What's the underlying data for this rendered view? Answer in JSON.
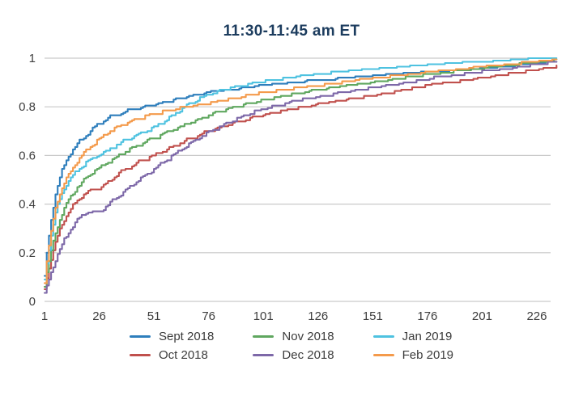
{
  "title": "11:30-11:45 am ET",
  "colors": {
    "title_text": "#1c3c5e",
    "axis_text": "#3d3d3d",
    "gridline": "#c9c9c9"
  },
  "chart_data": {
    "type": "line",
    "subtype": "empirical-cdf-staircase",
    "title": "11:30-11:45 am ET",
    "xlabel": "",
    "ylabel": "",
    "xlim": [
      1,
      237
    ],
    "ylim": [
      0,
      1
    ],
    "grid": "horizontal",
    "legend_position": "bottom",
    "x_ticks": [
      1,
      26,
      51,
      76,
      101,
      126,
      151,
      176,
      201,
      226
    ],
    "y_ticks": [
      0,
      0.2,
      0.4,
      0.6,
      0.8,
      1
    ],
    "y_tick_labels": [
      "0",
      "0.2",
      "0.4",
      "0.6",
      "0.8",
      "1"
    ],
    "series": [
      {
        "name": "Sept 2018",
        "color": "#2e7ebc",
        "points": [
          [
            1,
            0.1
          ],
          [
            2,
            0.2
          ],
          [
            3,
            0.29
          ],
          [
            4,
            0.36
          ],
          [
            5,
            0.42
          ],
          [
            6,
            0.46
          ],
          [
            8,
            0.52
          ],
          [
            10,
            0.565
          ],
          [
            12,
            0.6
          ],
          [
            15,
            0.64
          ],
          [
            18,
            0.665
          ],
          [
            20,
            0.685
          ],
          [
            25,
            0.725
          ],
          [
            29,
            0.75
          ],
          [
            35,
            0.77
          ],
          [
            40,
            0.783
          ],
          [
            48,
            0.8
          ],
          [
            56,
            0.818
          ],
          [
            65,
            0.838
          ],
          [
            75,
            0.857
          ],
          [
            85,
            0.868
          ],
          [
            100,
            0.885
          ],
          [
            115,
            0.897
          ],
          [
            130,
            0.908
          ],
          [
            145,
            0.92
          ],
          [
            160,
            0.93
          ],
          [
            178,
            0.941
          ],
          [
            195,
            0.952
          ],
          [
            210,
            0.962
          ],
          [
            225,
            0.975
          ],
          [
            235,
            0.985
          ]
        ]
      },
      {
        "name": "Oct 2018",
        "color": "#c0504d",
        "points": [
          [
            1,
            0.05
          ],
          [
            2,
            0.1
          ],
          [
            3,
            0.145
          ],
          [
            4,
            0.185
          ],
          [
            5,
            0.22
          ],
          [
            6,
            0.25
          ],
          [
            8,
            0.3
          ],
          [
            10,
            0.34
          ],
          [
            12,
            0.37
          ],
          [
            15,
            0.405
          ],
          [
            18,
            0.435
          ],
          [
            20,
            0.452
          ],
          [
            25,
            0.46
          ],
          [
            29,
            0.478
          ],
          [
            35,
            0.53
          ],
          [
            40,
            0.553
          ],
          [
            48,
            0.588
          ],
          [
            56,
            0.62
          ],
          [
            65,
            0.658
          ],
          [
            75,
            0.695
          ],
          [
            85,
            0.725
          ],
          [
            100,
            0.762
          ],
          [
            115,
            0.79
          ],
          [
            130,
            0.813
          ],
          [
            145,
            0.835
          ],
          [
            160,
            0.858
          ],
          [
            178,
            0.89
          ],
          [
            195,
            0.91
          ],
          [
            210,
            0.928
          ],
          [
            225,
            0.947
          ],
          [
            235,
            0.963
          ]
        ]
      },
      {
        "name": "Nov 2018",
        "color": "#5fa75f",
        "points": [
          [
            1,
            0.065
          ],
          [
            2,
            0.12
          ],
          [
            3,
            0.17
          ],
          [
            4,
            0.215
          ],
          [
            5,
            0.255
          ],
          [
            6,
            0.29
          ],
          [
            8,
            0.345
          ],
          [
            10,
            0.385
          ],
          [
            12,
            0.42
          ],
          [
            15,
            0.46
          ],
          [
            18,
            0.49
          ],
          [
            20,
            0.51
          ],
          [
            25,
            0.545
          ],
          [
            29,
            0.565
          ],
          [
            35,
            0.6
          ],
          [
            40,
            0.625
          ],
          [
            48,
            0.66
          ],
          [
            56,
            0.69
          ],
          [
            65,
            0.725
          ],
          [
            75,
            0.76
          ],
          [
            85,
            0.79
          ],
          [
            100,
            0.825
          ],
          [
            115,
            0.85
          ],
          [
            130,
            0.873
          ],
          [
            145,
            0.893
          ],
          [
            160,
            0.91
          ],
          [
            178,
            0.932
          ],
          [
            195,
            0.95
          ],
          [
            210,
            0.963
          ],
          [
            225,
            0.978
          ],
          [
            235,
            0.99
          ]
        ]
      },
      {
        "name": "Dec 2018",
        "color": "#7d68a8",
        "points": [
          [
            1,
            0.03
          ],
          [
            2,
            0.06
          ],
          [
            3,
            0.09
          ],
          [
            4,
            0.12
          ],
          [
            5,
            0.15
          ],
          [
            6,
            0.175
          ],
          [
            8,
            0.22
          ],
          [
            10,
            0.255
          ],
          [
            12,
            0.285
          ],
          [
            15,
            0.325
          ],
          [
            18,
            0.355
          ],
          [
            20,
            0.375
          ],
          [
            25,
            0.355
          ],
          [
            29,
            0.39
          ],
          [
            35,
            0.435
          ],
          [
            40,
            0.47
          ],
          [
            48,
            0.525
          ],
          [
            56,
            0.575
          ],
          [
            65,
            0.635
          ],
          [
            75,
            0.69
          ],
          [
            85,
            0.735
          ],
          [
            100,
            0.788
          ],
          [
            115,
            0.822
          ],
          [
            130,
            0.846
          ],
          [
            145,
            0.868
          ],
          [
            160,
            0.888
          ],
          [
            178,
            0.915
          ],
          [
            195,
            0.935
          ],
          [
            210,
            0.95
          ],
          [
            225,
            0.968
          ],
          [
            235,
            0.982
          ]
        ]
      },
      {
        "name": "Jan 2019",
        "color": "#4ec2e0",
        "points": [
          [
            1,
            0.085
          ],
          [
            2,
            0.16
          ],
          [
            3,
            0.23
          ],
          [
            4,
            0.29
          ],
          [
            5,
            0.34
          ],
          [
            6,
            0.375
          ],
          [
            8,
            0.43
          ],
          [
            10,
            0.465
          ],
          [
            12,
            0.5
          ],
          [
            15,
            0.53
          ],
          [
            18,
            0.556
          ],
          [
            20,
            0.57
          ],
          [
            25,
            0.6
          ],
          [
            29,
            0.615
          ],
          [
            35,
            0.648
          ],
          [
            40,
            0.672
          ],
          [
            48,
            0.7
          ],
          [
            56,
            0.74
          ],
          [
            65,
            0.8
          ],
          [
            75,
            0.848
          ],
          [
            85,
            0.875
          ],
          [
            100,
            0.902
          ],
          [
            115,
            0.92
          ],
          [
            130,
            0.935
          ],
          [
            145,
            0.947
          ],
          [
            160,
            0.958
          ],
          [
            178,
            0.97
          ],
          [
            195,
            0.98
          ],
          [
            210,
            0.987
          ],
          [
            225,
            0.994
          ],
          [
            235,
            0.999
          ]
        ]
      },
      {
        "name": "Feb 2019",
        "color": "#f49a4b",
        "points": [
          [
            1,
            0.075
          ],
          [
            2,
            0.17
          ],
          [
            3,
            0.25
          ],
          [
            4,
            0.31
          ],
          [
            5,
            0.36
          ],
          [
            6,
            0.4
          ],
          [
            8,
            0.45
          ],
          [
            10,
            0.49
          ],
          [
            12,
            0.525
          ],
          [
            15,
            0.565
          ],
          [
            18,
            0.6
          ],
          [
            20,
            0.62
          ],
          [
            25,
            0.66
          ],
          [
            29,
            0.69
          ],
          [
            35,
            0.72
          ],
          [
            40,
            0.74
          ],
          [
            48,
            0.762
          ],
          [
            56,
            0.78
          ],
          [
            65,
            0.796
          ],
          [
            75,
            0.812
          ],
          [
            85,
            0.83
          ],
          [
            100,
            0.855
          ],
          [
            115,
            0.872
          ],
          [
            130,
            0.89
          ],
          [
            145,
            0.908
          ],
          [
            160,
            0.923
          ],
          [
            178,
            0.94
          ],
          [
            195,
            0.955
          ],
          [
            210,
            0.968
          ],
          [
            225,
            0.982
          ],
          [
            235,
            0.991
          ]
        ]
      }
    ],
    "legend_column_order": [
      "Sept 2018",
      "Oct 2018",
      "Nov 2018",
      "Dec 2018",
      "Jan 2019",
      "Feb 2019"
    ]
  }
}
